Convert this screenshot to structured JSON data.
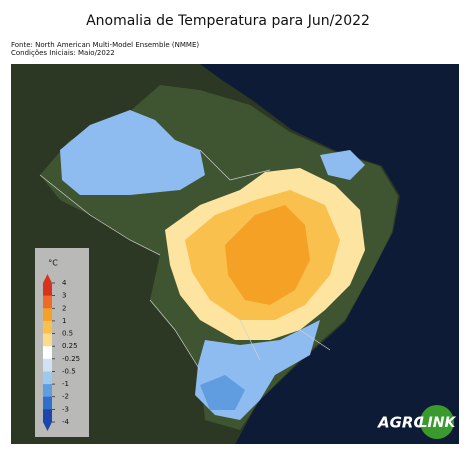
{
  "title": "Anomalia de Temperatura para Jun/2022",
  "source": {
    "line1": "Fonte: North American Multi-Model Ensemble (NMME)",
    "line2": "Condições Iniciais: Maio/2022"
  },
  "colorbar": {
    "unit": "°C",
    "ticks": [
      4,
      3,
      2,
      1,
      0.5,
      0.25,
      -0.25,
      -0.5,
      -1,
      -2,
      -3,
      -4
    ],
    "colors": [
      "#d8321f",
      "#ee6a26",
      "#f5a126",
      "#f9c04e",
      "#fcdc8a",
      "#ffffff",
      "#cfe3f7",
      "#9fc8ef",
      "#5f9de0",
      "#2f6fcc",
      "#1c45ad"
    ]
  },
  "logo": {
    "word1": "AGRO",
    "word2": "LINK"
  }
}
